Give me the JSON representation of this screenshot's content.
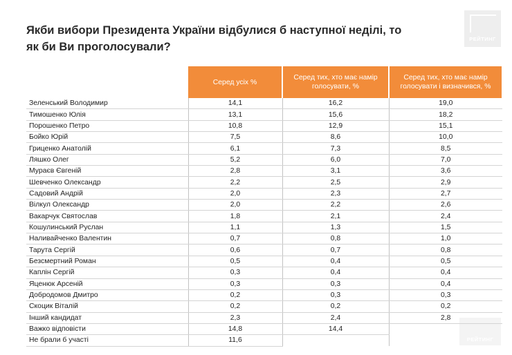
{
  "title": "Якби вибори Президента України відбулися б наступної неділі, то як би Ви проголосували?",
  "logo_text": "РЕЙТИНГ",
  "columns": [
    "Серед усіх %",
    "Серед тих, хто має намір голосувати, %",
    "Серед тих, хто має намір голосувати і визначився, %"
  ],
  "rows": [
    {
      "name": "Зеленський Володимир",
      "v1": "14,1",
      "v2": "16,2",
      "v3": "19,0"
    },
    {
      "name": "Тимошенко Юлія",
      "v1": "13,1",
      "v2": "15,6",
      "v3": "18,2"
    },
    {
      "name": "Порошенко Петро",
      "v1": "10,8",
      "v2": "12,9",
      "v3": "15,1"
    },
    {
      "name": "Бойко Юрій",
      "v1": "7,5",
      "v2": "8,6",
      "v3": "10,0"
    },
    {
      "name": "Гриценко Анатолій",
      "v1": "6,1",
      "v2": "7,3",
      "v3": "8,5"
    },
    {
      "name": "Ляшко Олег",
      "v1": "5,2",
      "v2": "6,0",
      "v3": "7,0"
    },
    {
      "name": "Мураєв Євгеній",
      "v1": "2,8",
      "v2": "3,1",
      "v3": "3,6"
    },
    {
      "name": "Шевченко Олександр",
      "v1": "2,2",
      "v2": "2,5",
      "v3": "2,9"
    },
    {
      "name": "Садовий Андрій",
      "v1": "2,0",
      "v2": "2,3",
      "v3": "2,7"
    },
    {
      "name": "Вілкул Олександр",
      "v1": "2,0",
      "v2": "2,2",
      "v3": "2,6"
    },
    {
      "name": "Вакарчук Святослав",
      "v1": "1,8",
      "v2": "2,1",
      "v3": "2,4"
    },
    {
      "name": "Кошулинський Руслан",
      "v1": "1,1",
      "v2": "1,3",
      "v3": "1,5"
    },
    {
      "name": "Наливайченко Валентин",
      "v1": "0,7",
      "v2": "0,8",
      "v3": "1,0"
    },
    {
      "name": "Тарута Сергій",
      "v1": "0,6",
      "v2": "0,7",
      "v3": "0,8"
    },
    {
      "name": "Безсмертний Роман",
      "v1": "0,5",
      "v2": "0,4",
      "v3": "0,5"
    },
    {
      "name": "Каплін Сергій",
      "v1": "0,3",
      "v2": "0,4",
      "v3": "0,4"
    },
    {
      "name": "Яценюк Арсеній",
      "v1": "0,3",
      "v2": "0,3",
      "v3": "0,4"
    },
    {
      "name": "Добродомов Дмитро",
      "v1": "0,2",
      "v2": "0,3",
      "v3": "0,3"
    },
    {
      "name": "Скоцик Віталій",
      "v1": "0,2",
      "v2": "0,2",
      "v3": "0,2"
    },
    {
      "name": "Інший кандидат",
      "v1": "2,3",
      "v2": "2,4",
      "v3": "2,8"
    },
    {
      "name": "Важко відповісти",
      "v1": "14,8",
      "v2": "14,4",
      "v3": ""
    },
    {
      "name": "Не брали б участі",
      "v1": "11,6",
      "v2": "",
      "v3": ""
    }
  ],
  "colors": {
    "header_bg": "#f28c3a",
    "header_text": "#ffffff",
    "row_border": "#d4d4d4",
    "logo_bg": "#eeeeee"
  }
}
